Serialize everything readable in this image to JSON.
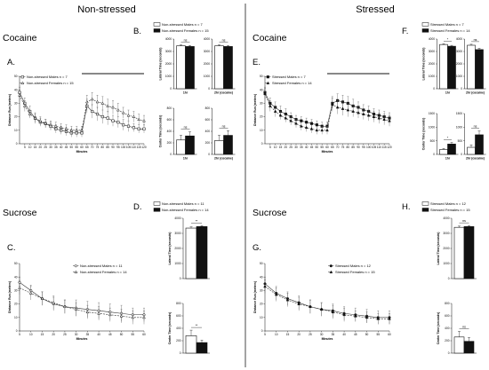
{
  "page": {
    "headers": {
      "left": "Non-stressed",
      "right": "Stressed"
    },
    "quadrants": [
      {
        "id": "ns-cocaine",
        "drug": "Cocaine",
        "line_panel": {
          "letter": "A.",
          "legend": [
            "Non-stressed Males n = 7",
            "Non-stressed Females n = 15"
          ],
          "xlabel": "Minutes",
          "ylabel": "Distance Run (meters)"
        },
        "bar_panel": {
          "letter": "B.",
          "legend": [
            "Non-stressed Males n = 7",
            "Non-stressed Females n = 15"
          ],
          "top_ylabel": "Lateral Time (seconds)",
          "bottom_ylabel": "Center Time (seconds)",
          "groups": [
            "1hr",
            "2hr (cocaine)"
          ]
        }
      },
      {
        "id": "s-cocaine",
        "drug": "Cocaine",
        "line_panel": {
          "letter": "E.",
          "legend": [
            "Stressed Males n = 7",
            "Stressed Females n = 14"
          ],
          "xlabel": "Minutes",
          "ylabel": "Distance Run (meters)"
        },
        "bar_panel": {
          "letter": "F.",
          "legend": [
            "Stressed Males n = 7",
            "Stressed Females n = 14"
          ],
          "top_ylabel": "Lateral Time (seconds)",
          "bottom_ylabel": "Center Time (seconds)",
          "groups": [
            "1hr",
            "2hr (cocaine)"
          ]
        }
      },
      {
        "id": "ns-sucrose",
        "drug": "Sucrose",
        "line_panel": {
          "letter": "C.",
          "legend": [
            "Non-stressed Males n = 11",
            "Non-stressed Females n = 14"
          ],
          "xlabel": "Minutes",
          "ylabel": "Distance Run (meters)"
        },
        "bar_panel": {
          "letter": "D.",
          "legend": [
            "Non-stressed Males n = 11",
            "Non-stressed Females n = 14"
          ],
          "top_ylabel": "Lateral Time (seconds)",
          "bottom_ylabel": "Center Time (seconds)"
        }
      },
      {
        "id": "s-sucrose",
        "drug": "Sucrose",
        "line_panel": {
          "letter": "G.",
          "legend": [
            "Stressed Males n = 12",
            "Stressed Females n = 15"
          ],
          "xlabel": "Minutes",
          "ylabel": "Distance Run (meters)"
        },
        "bar_panel": {
          "letter": "H.",
          "legend": [
            "Stressed Males n = 12",
            "Stressed Females n = 15"
          ],
          "top_ylabel": "Lateral Time (seconds)",
          "bottom_ylabel": "Center Time (seconds)"
        }
      }
    ]
  },
  "chart_data": [
    {
      "panel": "A",
      "type": "line",
      "xlabel": "Minutes",
      "ylabel": "Distance Run (meters)",
      "x": [
        0,
        5,
        10,
        15,
        20,
        25,
        30,
        35,
        40,
        45,
        50,
        55,
        60,
        65,
        70,
        75,
        80,
        85,
        90,
        95,
        100,
        105,
        110,
        115,
        120
      ],
      "xticks": [
        5,
        10,
        15,
        20,
        25,
        30,
        35,
        40,
        45,
        50,
        55,
        60,
        65,
        70,
        75,
        80,
        85,
        90,
        95,
        100,
        105,
        110,
        115,
        120
      ],
      "ylim": [
        0,
        50
      ],
      "yticks": [
        0,
        10,
        20,
        30,
        40,
        50
      ],
      "annotation_bar": [
        60,
        120
      ],
      "series": [
        {
          "name": "Non-stressed Males n = 7",
          "marker": "open-square",
          "values": [
            38,
            30,
            24,
            19,
            16,
            15,
            13,
            11,
            10,
            9,
            8,
            8,
            8,
            28,
            24,
            22,
            20,
            19,
            17,
            16,
            14,
            13,
            12,
            11,
            11
          ],
          "err": [
            4,
            4,
            4,
            4,
            3,
            3,
            3,
            3,
            3,
            3,
            3,
            3,
            3,
            5,
            5,
            5,
            5,
            5,
            4,
            4,
            4,
            4,
            3,
            3,
            3
          ]
        },
        {
          "name": "Non-stressed Females n = 15",
          "marker": "open-triangle",
          "values": [
            36,
            28,
            22,
            19,
            17,
            15,
            14,
            13,
            12,
            11,
            10,
            10,
            10,
            31,
            33,
            31,
            30,
            28,
            27,
            25,
            23,
            21,
            20,
            18,
            17
          ],
          "err": [
            4,
            4,
            3,
            3,
            3,
            3,
            3,
            3,
            3,
            3,
            3,
            3,
            3,
            5,
            5,
            5,
            5,
            5,
            5,
            5,
            4,
            4,
            4,
            4,
            4
          ]
        }
      ]
    },
    {
      "panel": "B-top",
      "type": "bar",
      "ylabel": "Lateral Time (seconds)",
      "categories": [
        "1hr",
        "2hr (cocaine)"
      ],
      "ylim": [
        0,
        4000
      ],
      "yticks": [
        0,
        1000,
        2000,
        3000,
        4000
      ],
      "series": [
        {
          "name": "Non-stressed Males n = 7",
          "values": [
            3450,
            3450
          ],
          "err": [
            80,
            80
          ]
        },
        {
          "name": "Non-stressed Females n = 15",
          "values": [
            3400,
            3400
          ],
          "err": [
            80,
            80
          ]
        }
      ],
      "significance": [
        "ns",
        "ns"
      ]
    },
    {
      "panel": "B-bottom",
      "type": "bar",
      "ylabel": "Center Time (seconds)",
      "categories": [
        "1hr",
        "2hr (cocaine)"
      ],
      "ylim": [
        0,
        800
      ],
      "yticks": [
        0,
        200,
        400,
        600,
        800
      ],
      "series": [
        {
          "name": "Non-stressed Males n = 7",
          "values": [
            250,
            240
          ],
          "err": [
            80,
            90
          ]
        },
        {
          "name": "Non-stressed Females n = 15",
          "values": [
            320,
            330
          ],
          "err": [
            70,
            80
          ]
        }
      ],
      "significance": [
        "ns",
        "ns"
      ]
    },
    {
      "panel": "E",
      "type": "line",
      "xlabel": "Minutes",
      "ylabel": "Distance Run (meters)",
      "x": [
        0,
        5,
        10,
        15,
        20,
        25,
        30,
        35,
        40,
        45,
        50,
        55,
        60,
        65,
        70,
        75,
        80,
        85,
        90,
        95,
        100,
        105,
        110,
        115,
        120
      ],
      "xticks": [
        5,
        10,
        15,
        20,
        25,
        30,
        35,
        40,
        45,
        50,
        55,
        60,
        65,
        70,
        75,
        80,
        85,
        90,
        95,
        100,
        105,
        110,
        115,
        120
      ],
      "ylim": [
        0,
        50
      ],
      "yticks": [
        0,
        10,
        20,
        30,
        40,
        50
      ],
      "annotation_bar": [
        60,
        120
      ],
      "series": [
        {
          "name": "Stressed Males n = 7",
          "marker": "filled-square",
          "values": [
            38,
            30,
            27,
            24,
            22,
            20,
            18,
            17,
            16,
            15,
            14,
            13,
            13,
            30,
            32,
            31,
            30,
            28,
            27,
            25,
            24,
            22,
            21,
            20,
            19
          ],
          "err": [
            4,
            4,
            4,
            4,
            4,
            3,
            3,
            3,
            3,
            3,
            3,
            3,
            3,
            5,
            5,
            5,
            5,
            5,
            4,
            4,
            4,
            4,
            4,
            4,
            4
          ]
        },
        {
          "name": "Stressed Females n = 14",
          "marker": "filled-triangle",
          "values": [
            37,
            28,
            24,
            21,
            19,
            17,
            15,
            13,
            12,
            11,
            10,
            10,
            10,
            29,
            27,
            26,
            25,
            24,
            23,
            22,
            21,
            20,
            19,
            18,
            17
          ],
          "err": [
            4,
            4,
            4,
            3,
            3,
            3,
            3,
            3,
            3,
            3,
            3,
            3,
            3,
            5,
            5,
            5,
            5,
            4,
            4,
            4,
            4,
            4,
            4,
            4,
            4
          ]
        }
      ]
    },
    {
      "panel": "F-top",
      "type": "bar",
      "ylabel": "Lateral Time (seconds)",
      "categories": [
        "1hr",
        "2hr (cocaine)"
      ],
      "ylim": [
        0,
        4000
      ],
      "yticks": [
        0,
        1000,
        2000,
        3000,
        4000
      ],
      "series": [
        {
          "name": "Stressed Males n = 7",
          "values": [
            3560,
            3500
          ],
          "err": [
            60,
            80
          ]
        },
        {
          "name": "Stressed Females n = 14",
          "values": [
            3420,
            3150
          ],
          "err": [
            70,
            110
          ]
        }
      ],
      "significance": [
        "*",
        "ns"
      ]
    },
    {
      "panel": "F-bottom",
      "type": "bar",
      "ylabel": "Center Time (seconds)",
      "categories": [
        "1hr",
        "2hr (cocaine)"
      ],
      "ylim": [
        0,
        1500
      ],
      "yticks": [
        0,
        500,
        1000,
        1500
      ],
      "series": [
        {
          "name": "Stressed Males n = 7",
          "values": [
            180,
            260
          ],
          "err": [
            40,
            90
          ]
        },
        {
          "name": "Stressed Females n = 14",
          "values": [
            380,
            720
          ],
          "err": [
            60,
            140
          ]
        }
      ],
      "significance": [
        "*",
        "ns"
      ]
    },
    {
      "panel": "C",
      "type": "line",
      "xlabel": "Minutes",
      "ylabel": "Distance Run (meters)",
      "x": [
        5,
        10,
        15,
        20,
        25,
        30,
        35,
        40,
        45,
        50,
        55,
        60
      ],
      "xticks": [
        5,
        10,
        15,
        20,
        25,
        30,
        35,
        40,
        45,
        50,
        55,
        60
      ],
      "ylim": [
        0,
        50
      ],
      "yticks": [
        0,
        10,
        20,
        30,
        40,
        50
      ],
      "series": [
        {
          "name": "Non-stressed Males n = 11",
          "marker": "open-circle",
          "values": [
            36,
            30,
            24,
            20,
            18,
            17,
            16,
            15,
            14,
            13,
            12,
            12
          ],
          "err": [
            4,
            4,
            5,
            5,
            5,
            6,
            6,
            6,
            6,
            6,
            5,
            5
          ]
        },
        {
          "name": "Non-stressed Females n = 14",
          "marker": "open-triangle",
          "values": [
            32,
            28,
            24,
            21,
            18,
            16,
            14,
            13,
            12,
            11,
            10,
            10
          ],
          "err": [
            5,
            5,
            5,
            5,
            5,
            5,
            5,
            5,
            5,
            5,
            5,
            5
          ]
        }
      ]
    },
    {
      "panel": "D-top",
      "type": "bar",
      "ylabel": "Lateral Time (seconds)",
      "categories": [
        ""
      ],
      "ylim": [
        0,
        4000
      ],
      "yticks": [
        0,
        1000,
        2000,
        3000,
        4000
      ],
      "series": [
        {
          "name": "Non-stressed Males n = 11",
          "values": [
            3350
          ],
          "err": [
            80
          ]
        },
        {
          "name": "Non-stressed Females n = 14",
          "values": [
            3450
          ],
          "err": [
            60
          ]
        }
      ],
      "significance": [
        "**"
      ]
    },
    {
      "panel": "D-bottom",
      "type": "bar",
      "ylabel": "Center Time (seconds)",
      "categories": [
        ""
      ],
      "ylim": [
        0,
        800
      ],
      "yticks": [
        0,
        200,
        400,
        600,
        800
      ],
      "series": [
        {
          "name": "Non-stressed Males n = 11",
          "values": [
            280
          ],
          "err": [
            90
          ]
        },
        {
          "name": "Non-stressed Females n = 14",
          "values": [
            170
          ],
          "err": [
            40
          ]
        }
      ],
      "significance": [
        "**"
      ]
    },
    {
      "panel": "G",
      "type": "line",
      "xlabel": "Minutes",
      "ylabel": "Distance Run (meters)",
      "x": [
        5,
        10,
        15,
        20,
        25,
        30,
        35,
        40,
        45,
        50,
        55,
        60
      ],
      "xticks": [
        5,
        10,
        15,
        20,
        25,
        30,
        35,
        40,
        45,
        50,
        55,
        60
      ],
      "ylim": [
        0,
        50
      ],
      "yticks": [
        0,
        10,
        20,
        30,
        40,
        50
      ],
      "series": [
        {
          "name": "Stressed Males n = 12",
          "marker": "filled-circle",
          "values": [
            35,
            28,
            24,
            21,
            18,
            16,
            15,
            13,
            12,
            11,
            10,
            10
          ],
          "err": [
            5,
            5,
            5,
            5,
            5,
            5,
            5,
            5,
            5,
            5,
            5,
            5
          ]
        },
        {
          "name": "Stressed Females n = 15",
          "marker": "filled-triangle",
          "values": [
            33,
            27,
            23,
            20,
            18,
            16,
            14,
            12,
            11,
            10,
            9,
            9
          ],
          "err": [
            5,
            5,
            5,
            5,
            5,
            5,
            5,
            5,
            4,
            4,
            4,
            4
          ]
        }
      ]
    },
    {
      "panel": "H-top",
      "type": "bar",
      "ylabel": "Lateral Time (seconds)",
      "categories": [
        ""
      ],
      "ylim": [
        0,
        4000
      ],
      "yticks": [
        0,
        1000,
        2000,
        3000,
        4000
      ],
      "series": [
        {
          "name": "Stressed Males n = 12",
          "values": [
            3400
          ],
          "err": [
            80
          ]
        },
        {
          "name": "Stressed Females n = 15",
          "values": [
            3450
          ],
          "err": [
            70
          ]
        }
      ],
      "significance": [
        "ns"
      ]
    },
    {
      "panel": "H-bottom",
      "type": "bar",
      "ylabel": "Center Time (seconds)",
      "categories": [
        ""
      ],
      "ylim": [
        0,
        800
      ],
      "yticks": [
        0,
        200,
        400,
        600,
        800
      ],
      "series": [
        {
          "name": "Stressed Males n = 12",
          "values": [
            260
          ],
          "err": [
            90
          ]
        },
        {
          "name": "Stressed Females n = 15",
          "values": [
            190
          ],
          "err": [
            60
          ]
        }
      ],
      "significance": [
        "ns"
      ]
    }
  ]
}
